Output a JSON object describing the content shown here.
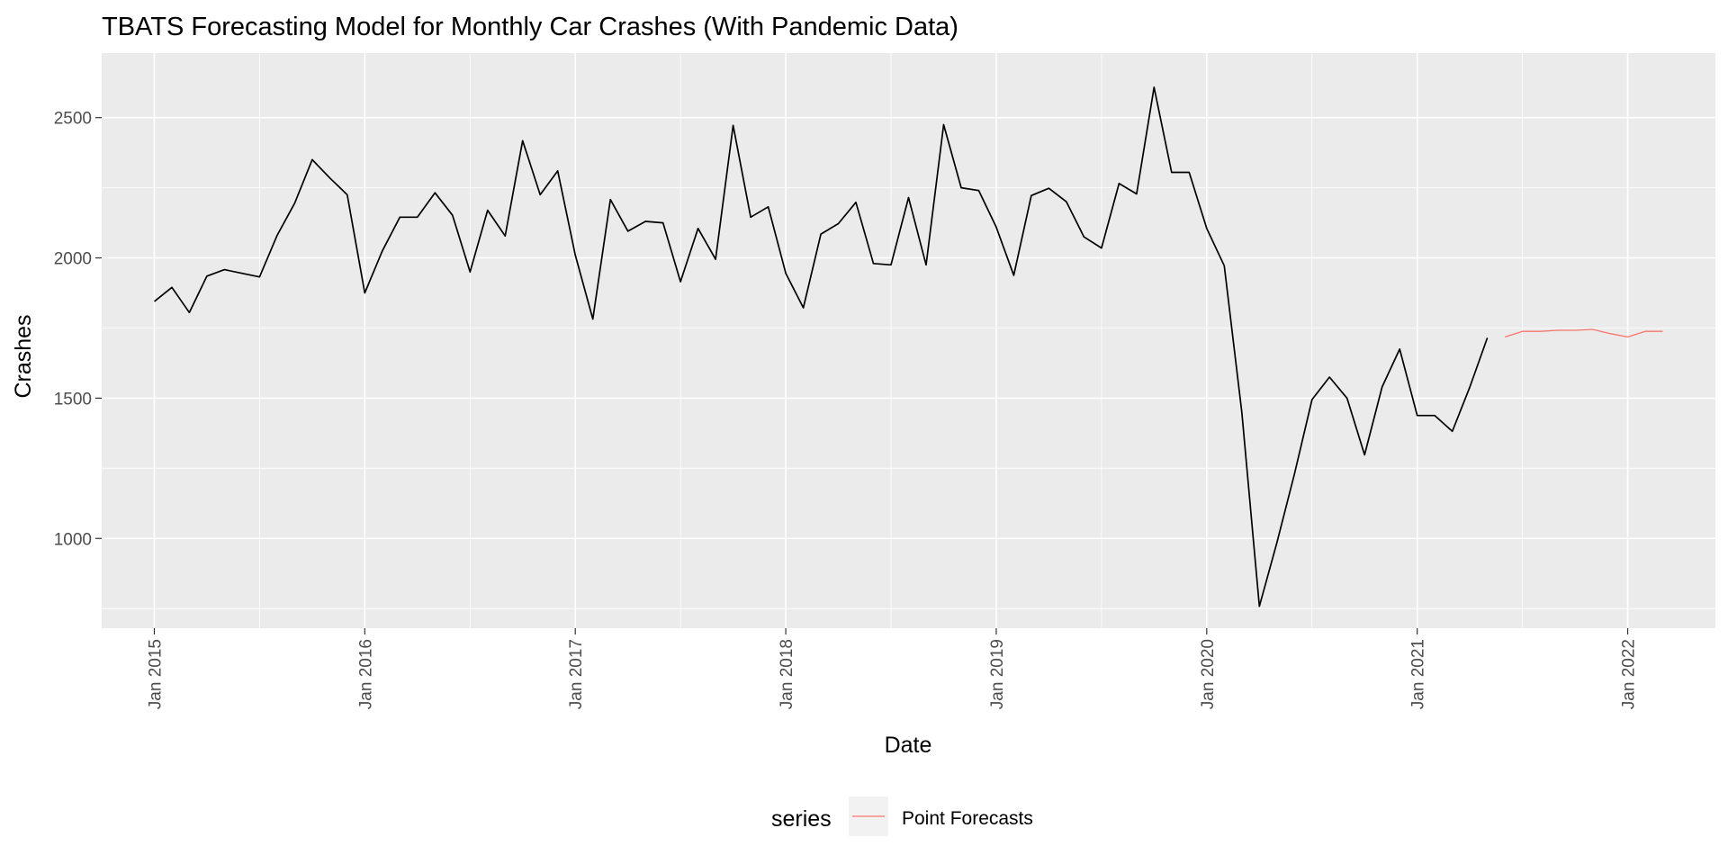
{
  "chart_data": {
    "type": "line",
    "title": "TBATS Forecasting Model for Monthly Car Crashes (With Pandemic Data)",
    "xlabel": "Date",
    "ylabel": "Crashes",
    "x_tick_labels": [
      "Jan 2015",
      "Jan 2016",
      "Jan 2017",
      "Jan 2018",
      "Jan 2019",
      "Jan 2020",
      "Jan 2021",
      "Jan 2022"
    ],
    "y_ticks": [
      1000,
      1500,
      2000,
      2500
    ],
    "xlim": [
      "2014-10",
      "2022-06"
    ],
    "ylim": [
      680,
      2730
    ],
    "grid": true,
    "legend": {
      "title": "series",
      "position": "bottom",
      "entries": [
        {
          "name": "Point Forecasts",
          "color": "#F8766D"
        }
      ]
    },
    "series": [
      {
        "role": "observed",
        "color": "#000000",
        "points": [
          [
            "2015-01",
            1845
          ],
          [
            "2015-02",
            1895
          ],
          [
            "2015-03",
            1805
          ],
          [
            "2015-04",
            1935
          ],
          [
            "2015-05",
            1958
          ],
          [
            "2015-06",
            1945
          ],
          [
            "2015-07",
            1932
          ],
          [
            "2015-08",
            2080
          ],
          [
            "2015-09",
            2195
          ],
          [
            "2015-10",
            2350
          ],
          [
            "2015-11",
            2285
          ],
          [
            "2015-12",
            2225
          ],
          [
            "2016-01",
            1875
          ],
          [
            "2016-02",
            2025
          ],
          [
            "2016-03",
            2145
          ],
          [
            "2016-04",
            2145
          ],
          [
            "2016-05",
            2232
          ],
          [
            "2016-06",
            2152
          ],
          [
            "2016-07",
            1950
          ],
          [
            "2016-08",
            2170
          ],
          [
            "2016-09",
            2078
          ],
          [
            "2016-10",
            2418
          ],
          [
            "2016-11",
            2225
          ],
          [
            "2016-12",
            2310
          ],
          [
            "2017-01",
            2010
          ],
          [
            "2017-02",
            1782
          ],
          [
            "2017-03",
            2208
          ],
          [
            "2017-04",
            2095
          ],
          [
            "2017-05",
            2130
          ],
          [
            "2017-06",
            2125
          ],
          [
            "2017-07",
            1915
          ],
          [
            "2017-08",
            2105
          ],
          [
            "2017-09",
            1995
          ],
          [
            "2017-10",
            2472
          ],
          [
            "2017-11",
            2145
          ],
          [
            "2017-12",
            2182
          ],
          [
            "2018-01",
            1945
          ],
          [
            "2018-02",
            1822
          ],
          [
            "2018-03",
            2085
          ],
          [
            "2018-04",
            2122
          ],
          [
            "2018-05",
            2198
          ],
          [
            "2018-06",
            1980
          ],
          [
            "2018-07",
            1975
          ],
          [
            "2018-08",
            2215
          ],
          [
            "2018-09",
            1975
          ],
          [
            "2018-10",
            2475
          ],
          [
            "2018-11",
            2250
          ],
          [
            "2018-12",
            2240
          ],
          [
            "2019-01",
            2110
          ],
          [
            "2019-02",
            1938
          ],
          [
            "2019-03",
            2222
          ],
          [
            "2019-04",
            2248
          ],
          [
            "2019-05",
            2200
          ],
          [
            "2019-06",
            2075
          ],
          [
            "2019-07",
            2035
          ],
          [
            "2019-08",
            2265
          ],
          [
            "2019-09",
            2228
          ],
          [
            "2019-10",
            2608
          ],
          [
            "2019-11",
            2305
          ],
          [
            "2019-12",
            2305
          ],
          [
            "2020-01",
            2105
          ],
          [
            "2020-02",
            1972
          ],
          [
            "2020-03",
            1450
          ],
          [
            "2020-04",
            758
          ],
          [
            "2020-05",
            985
          ],
          [
            "2020-06",
            1230
          ],
          [
            "2020-07",
            1495
          ],
          [
            "2020-08",
            1575
          ],
          [
            "2020-09",
            1500
          ],
          [
            "2020-10",
            1298
          ],
          [
            "2020-11",
            1540
          ],
          [
            "2020-12",
            1675
          ],
          [
            "2021-01",
            1438
          ],
          [
            "2021-02",
            1438
          ],
          [
            "2021-03",
            1382
          ],
          [
            "2021-04",
            1540
          ],
          [
            "2021-05",
            1715
          ]
        ]
      },
      {
        "name": "Point Forecasts",
        "role": "forecast",
        "color": "#F8766D",
        "points": [
          [
            "2021-06",
            1718
          ],
          [
            "2021-07",
            1738
          ],
          [
            "2021-08",
            1738
          ],
          [
            "2021-09",
            1742
          ],
          [
            "2021-10",
            1742
          ],
          [
            "2021-11",
            1745
          ],
          [
            "2021-12",
            1730
          ],
          [
            "2022-01",
            1718
          ],
          [
            "2022-02",
            1738
          ],
          [
            "2022-03",
            1738
          ]
        ]
      }
    ]
  }
}
